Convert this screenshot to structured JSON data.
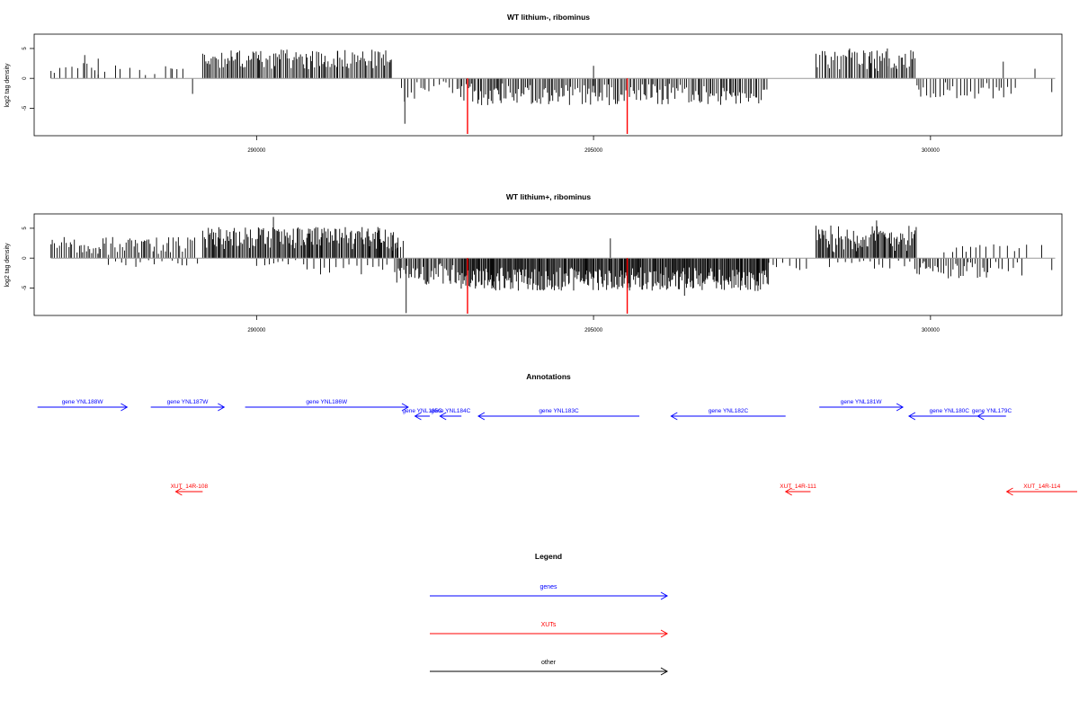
{
  "chart_data": [
    {
      "type": "bar",
      "title": "WT lithium-, ribominus",
      "ylabel": "log2 tag density",
      "xlim": [
        286700,
        301950
      ],
      "ylim": [
        -9.6,
        7.4
      ],
      "x_ticks": [
        290000,
        295000,
        300000
      ],
      "x_tick_labels": [
        "290000",
        "295000",
        "300000"
      ],
      "y_ticks": [
        -5,
        0,
        5
      ],
      "y_tick_labels": [
        "-5",
        "0",
        "5"
      ],
      "baseline": {
        "x_range": [
          286950,
          301850
        ],
        "color": "#999999"
      },
      "markers": [
        {
          "x": 293130,
          "y_range": [
            0,
            -9.3
          ],
          "color": "#ff0000"
        },
        {
          "x": 295500,
          "y_range": [
            0,
            -9.3
          ],
          "color": "#ff0000"
        }
      ],
      "density_regions": [
        {
          "x_range": [
            286950,
            287650
          ],
          "range": [
            0.5,
            2.6
          ],
          "step": 70,
          "sign": 1
        },
        {
          "x_range": [
            287650,
            289000
          ],
          "range": [
            0.3,
            2.5
          ],
          "step": 120,
          "sign": 1
        },
        {
          "x_range": [
            289200,
            292000
          ],
          "range": [
            1.5,
            4.8
          ],
          "step": 22,
          "sign": 1
        },
        {
          "x_range": [
            292150,
            292500
          ],
          "range": [
            0.5,
            4.0
          ],
          "step": 40,
          "sign": -1
        },
        {
          "x_range": [
            292500,
            293000
          ],
          "range": [
            0.5,
            2.5
          ],
          "step": 60,
          "sign": -1
        },
        {
          "x_range": [
            293000,
            297600
          ],
          "range": [
            0.8,
            4.5
          ],
          "step": 26,
          "sign": -1
        },
        {
          "x_range": [
            298300,
            299800
          ],
          "range": [
            1.0,
            4.8
          ],
          "step": 26,
          "sign": 1
        },
        {
          "x_range": [
            299800,
            301300
          ],
          "range": [
            0.5,
            3.5
          ],
          "step": 45,
          "sign": -1
        }
      ],
      "spikes": [
        {
          "x": 287450,
          "y": 3.9
        },
        {
          "x": 287650,
          "y": 3.3
        },
        {
          "x": 288750,
          "y": 1.6
        },
        {
          "x": 289050,
          "y": -2.6
        },
        {
          "x": 290450,
          "y": 4.8
        },
        {
          "x": 291200,
          "y": 4.6
        },
        {
          "x": 292200,
          "y": -7.6
        },
        {
          "x": 295000,
          "y": 2.1
        },
        {
          "x": 298800,
          "y": 5.0
        },
        {
          "x": 299360,
          "y": 5.0
        },
        {
          "x": 301080,
          "y": 2.8
        },
        {
          "x": 301550,
          "y": 1.6
        },
        {
          "x": 301800,
          "y": -2.3
        }
      ]
    },
    {
      "type": "bar",
      "title": "WT lithium+, ribominus",
      "ylabel": "log2 tag density",
      "xlim": [
        286700,
        301950
      ],
      "ylim": [
        -9.6,
        7.4
      ],
      "x_ticks": [
        290000,
        295000,
        300000
      ],
      "x_tick_labels": [
        "290000",
        "295000",
        "300000"
      ],
      "y_ticks": [
        -5,
        0,
        5
      ],
      "y_tick_labels": [
        "-5",
        "0",
        "5"
      ],
      "baseline": {
        "x_range": [
          286950,
          301850
        ],
        "color": "#999999"
      },
      "markers": [
        {
          "x": 293130,
          "y_range": [
            0,
            -9.3
          ],
          "color": "#ff0000"
        },
        {
          "x": 295500,
          "y_range": [
            0,
            -9.3
          ],
          "color": "#ff0000"
        }
      ],
      "density_regions": [
        {
          "x_range": [
            286950,
            289100
          ],
          "range": [
            0.5,
            3.6
          ],
          "step": 30,
          "sign": 1
        },
        {
          "x_range": [
            287800,
            289200
          ],
          "range": [
            0.2,
            1.5
          ],
          "step": 110,
          "sign": -1
        },
        {
          "x_range": [
            289200,
            292100
          ],
          "range": [
            1.5,
            5.2
          ],
          "step": 18,
          "sign": 1
        },
        {
          "x_range": [
            290000,
            292000
          ],
          "range": [
            0.3,
            2.8
          ],
          "step": 90,
          "sign": -1
        },
        {
          "x_range": [
            292000,
            292200
          ],
          "range": [
            0.5,
            3.5
          ],
          "step": 30,
          "sign": 1
        },
        {
          "x_range": [
            292050,
            293000
          ],
          "range": [
            0.8,
            4.5
          ],
          "step": 22,
          "sign": -1
        },
        {
          "x_range": [
            293000,
            297600
          ],
          "range": [
            1.5,
            5.5
          ],
          "step": 14,
          "sign": -1
        },
        {
          "x_range": [
            297600,
            298200
          ],
          "range": [
            0.3,
            2.0
          ],
          "step": 80,
          "sign": -1
        },
        {
          "x_range": [
            298300,
            299800
          ],
          "range": [
            1.0,
            5.5
          ],
          "step": 18,
          "sign": 1
        },
        {
          "x_range": [
            298500,
            299800
          ],
          "range": [
            0.3,
            2.0
          ],
          "step": 90,
          "sign": -1
        },
        {
          "x_range": [
            299800,
            300850
          ],
          "range": [
            0.5,
            3.5
          ],
          "step": 30,
          "sign": -1
        },
        {
          "x_range": [
            300200,
            301450
          ],
          "range": [
            0.8,
            2.3
          ],
          "step": 90,
          "sign": 1
        },
        {
          "x_range": [
            300850,
            301400
          ],
          "range": [
            0.5,
            3.0
          ],
          "step": 70,
          "sign": -1
        }
      ],
      "spikes": [
        {
          "x": 290250,
          "y": 6.9
        },
        {
          "x": 291800,
          "y": 5.2
        },
        {
          "x": 292220,
          "y": -9.2
        },
        {
          "x": 295250,
          "y": 3.3
        },
        {
          "x": 296350,
          "y": -6.3
        },
        {
          "x": 299200,
          "y": 6.3
        },
        {
          "x": 301650,
          "y": 2.2
        },
        {
          "x": 301800,
          "y": -2.0
        }
      ]
    },
    {
      "type": "diagram",
      "title": "Annotations",
      "features": [
        {
          "label": "gene YNL188W",
          "kind": "gene",
          "strand": "+",
          "start": 286750,
          "end": 288080,
          "row": 0
        },
        {
          "label": "gene YNL187W",
          "kind": "gene",
          "strand": "+",
          "start": 288430,
          "end": 289520,
          "row": 0
        },
        {
          "label": "gene YNL186W",
          "kind": "gene",
          "strand": "+",
          "start": 289830,
          "end": 292250,
          "row": 0
        },
        {
          "label": "gene YNL185C",
          "kind": "gene",
          "strand": "-",
          "start": 292350,
          "end": 292570,
          "row": 1
        },
        {
          "label": "gene YNL184C",
          "kind": "gene",
          "strand": "-",
          "start": 292720,
          "end": 293040,
          "row": 1
        },
        {
          "label": "gene YNL183C",
          "kind": "gene",
          "strand": "-",
          "start": 293290,
          "end": 295680,
          "row": 1
        },
        {
          "label": "gene YNL182C",
          "kind": "gene",
          "strand": "-",
          "start": 296150,
          "end": 297850,
          "row": 1
        },
        {
          "label": "gene YNL181W",
          "kind": "gene",
          "strand": "+",
          "start": 298350,
          "end": 299590,
          "row": 0
        },
        {
          "label": "gene YNL180C",
          "kind": "gene",
          "strand": "-",
          "start": 299680,
          "end": 300880,
          "row": 1
        },
        {
          "label": "gene YNL179C",
          "kind": "gene",
          "strand": "-",
          "start": 300700,
          "end": 301120,
          "row": 1
        },
        {
          "label": "XUT_14R-108",
          "kind": "xut",
          "strand": "-",
          "start": 288800,
          "end": 289200,
          "row": 2
        },
        {
          "label": "XUT_14R-111",
          "kind": "xut",
          "strand": "-",
          "start": 297850,
          "end": 298220,
          "row": 2
        },
        {
          "label": "XUT_14R-114",
          "kind": "xut",
          "strand": "-",
          "start": 301130,
          "end": 302200,
          "row": 2
        }
      ]
    },
    {
      "type": "legend",
      "title": "Legend",
      "entries": [
        {
          "label": "genes",
          "color": "#0000ff"
        },
        {
          "label": "XUTs",
          "color": "#ff0000"
        },
        {
          "label": "other",
          "color": "#000000"
        }
      ]
    }
  ]
}
